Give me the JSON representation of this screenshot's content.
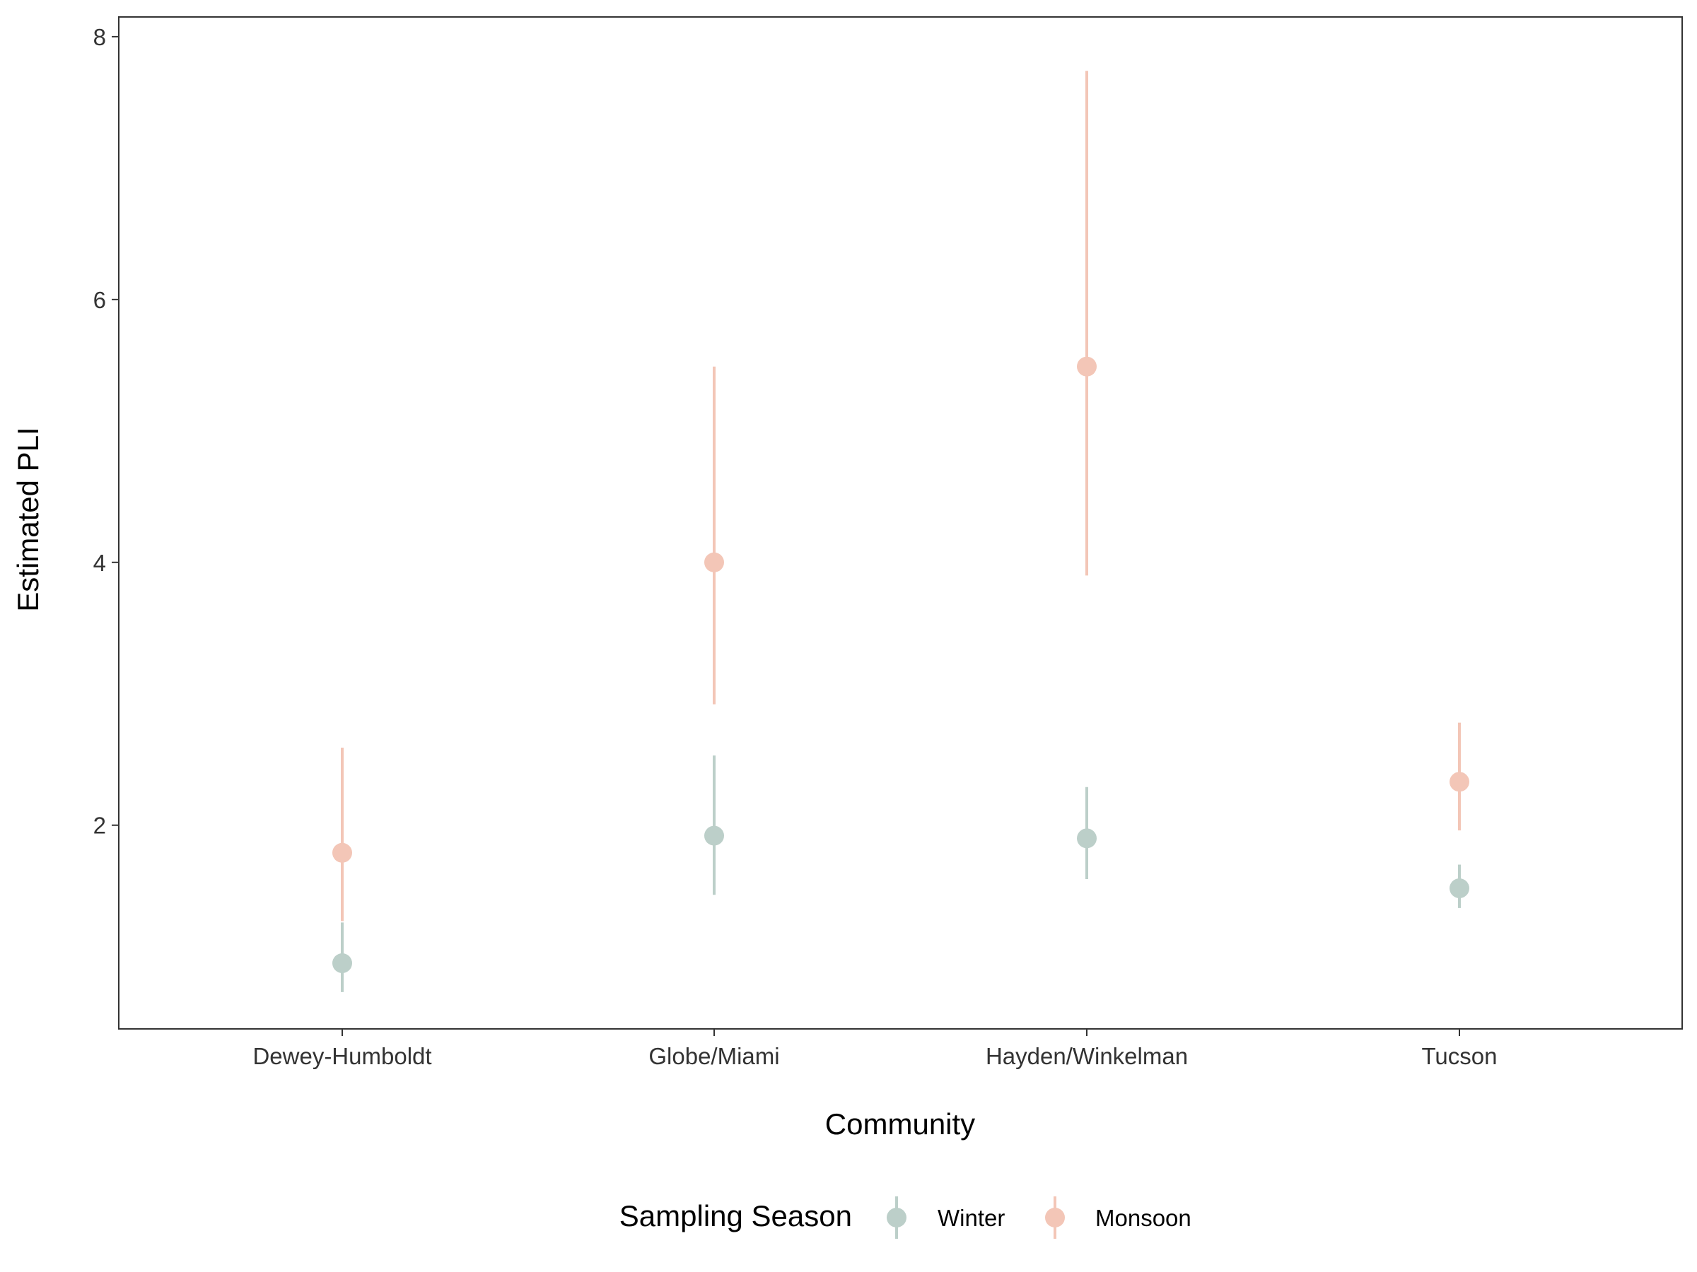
{
  "chart_data": {
    "type": "scatter",
    "subtype": "pointrange",
    "title": "",
    "xlabel": "Community",
    "ylabel": "Estimated PLI",
    "categories": [
      "Dewey-Humboldt",
      "Globe/Miami",
      "Hayden/Winkelman",
      "Tucson"
    ],
    "ylim": [
      0.45,
      8.15
    ],
    "yticks": [
      2,
      4,
      6,
      8
    ],
    "grid": false,
    "legend": {
      "title": "Sampling Season",
      "position": "bottom"
    },
    "series": [
      {
        "name": "Winter",
        "color": "#bccfc9",
        "values": [
          0.95,
          1.92,
          1.9,
          1.52
        ],
        "lower": [
          0.73,
          1.47,
          1.59,
          1.37
        ],
        "upper": [
          1.26,
          2.53,
          2.29,
          1.7
        ]
      },
      {
        "name": "Monsoon",
        "color": "#f3c6b7",
        "values": [
          1.79,
          4.0,
          5.49,
          2.33
        ],
        "lower": [
          1.27,
          2.92,
          3.9,
          1.96
        ],
        "upper": [
          2.59,
          5.49,
          7.74,
          2.78
        ]
      }
    ]
  }
}
